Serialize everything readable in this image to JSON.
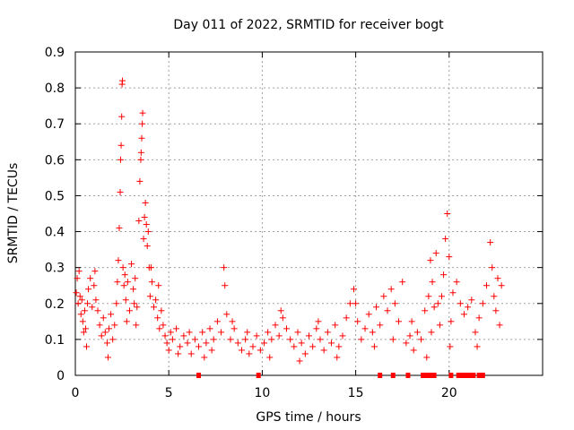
{
  "chart_data": {
    "type": "scatter",
    "title": "Day 011 of 2022, SRMTID for receiver bogt",
    "xlabel": "GPS time / hours",
    "ylabel": "SRMTID / TECUs",
    "xlim": [
      0,
      25
    ],
    "ylim": [
      0,
      0.9
    ],
    "xticks": [
      {
        "value": 0,
        "label": "0"
      },
      {
        "value": 5,
        "label": "5"
      },
      {
        "value": 10,
        "label": "10"
      },
      {
        "value": 15,
        "label": "15"
      },
      {
        "value": 20,
        "label": "20"
      }
    ],
    "yticks": [
      {
        "value": 0,
        "label": "0"
      },
      {
        "value": 0.1,
        "label": "0.1"
      },
      {
        "value": 0.2,
        "label": "0.2"
      },
      {
        "value": 0.3,
        "label": "0.3"
      },
      {
        "value": 0.4,
        "label": "0.4"
      },
      {
        "value": 0.5,
        "label": "0.5"
      },
      {
        "value": 0.6,
        "label": "0.6"
      },
      {
        "value": 0.7,
        "label": "0.7"
      },
      {
        "value": 0.8,
        "label": "0.8"
      },
      {
        "value": 0.9,
        "label": "0.9"
      }
    ],
    "grid": true,
    "marker": "+",
    "color": "#ff0000",
    "series": [
      {
        "name": "SRMTID",
        "points": [
          [
            0.05,
            0.23
          ],
          [
            0.1,
            0.27
          ],
          [
            0.15,
            0.2
          ],
          [
            0.2,
            0.29
          ],
          [
            0.25,
            0.22
          ],
          [
            0.3,
            0.17
          ],
          [
            0.35,
            0.21
          ],
          [
            0.4,
            0.15
          ],
          [
            0.45,
            0.12
          ],
          [
            0.5,
            0.18
          ],
          [
            0.55,
            0.13
          ],
          [
            0.6,
            0.08
          ],
          [
            0.65,
            0.2
          ],
          [
            0.7,
            0.24
          ],
          [
            0.8,
            0.27
          ],
          [
            0.9,
            0.19
          ],
          [
            1.0,
            0.25
          ],
          [
            1.05,
            0.29
          ],
          [
            1.1,
            0.21
          ],
          [
            1.2,
            0.18
          ],
          [
            1.3,
            0.14
          ],
          [
            1.4,
            0.11
          ],
          [
            1.5,
            0.16
          ],
          [
            1.6,
            0.12
          ],
          [
            1.7,
            0.09
          ],
          [
            1.75,
            0.05
          ],
          [
            1.8,
            0.13
          ],
          [
            1.9,
            0.17
          ],
          [
            2.0,
            0.1
          ],
          [
            2.1,
            0.14
          ],
          [
            2.2,
            0.2
          ],
          [
            2.25,
            0.26
          ],
          [
            2.3,
            0.32
          ],
          [
            2.35,
            0.41
          ],
          [
            2.4,
            0.51
          ],
          [
            2.42,
            0.6
          ],
          [
            2.45,
            0.64
          ],
          [
            2.48,
            0.72
          ],
          [
            2.5,
            0.81
          ],
          [
            2.52,
            0.82
          ],
          [
            2.55,
            0.3
          ],
          [
            2.6,
            0.25
          ],
          [
            2.7,
            0.21
          ],
          [
            2.8,
            0.26
          ],
          [
            2.9,
            0.18
          ],
          [
            3.0,
            0.31
          ],
          [
            3.1,
            0.24
          ],
          [
            3.2,
            0.27
          ],
          [
            3.3,
            0.19
          ],
          [
            3.4,
            0.43
          ],
          [
            3.45,
            0.54
          ],
          [
            3.5,
            0.6
          ],
          [
            3.52,
            0.62
          ],
          [
            3.55,
            0.66
          ],
          [
            3.58,
            0.7
          ],
          [
            3.6,
            0.73
          ],
          [
            3.65,
            0.38
          ],
          [
            3.7,
            0.44
          ],
          [
            3.75,
            0.48
          ],
          [
            3.8,
            0.42
          ],
          [
            3.85,
            0.36
          ],
          [
            3.9,
            0.4
          ],
          [
            3.95,
            0.3
          ],
          [
            4.0,
            0.22
          ],
          [
            4.1,
            0.26
          ],
          [
            4.2,
            0.19
          ],
          [
            4.3,
            0.21
          ],
          [
            4.4,
            0.16
          ],
          [
            4.5,
            0.13
          ],
          [
            4.6,
            0.18
          ],
          [
            4.7,
            0.14
          ],
          [
            4.8,
            0.11
          ],
          [
            4.9,
            0.09
          ],
          [
            5.0,
            0.07
          ],
          [
            5.2,
            0.1
          ],
          [
            5.4,
            0.13
          ],
          [
            5.6,
            0.08
          ],
          [
            5.8,
            0.11
          ],
          [
            6.0,
            0.09
          ],
          [
            6.2,
            0.06
          ],
          [
            6.4,
            0.1
          ],
          [
            6.6,
            0.08
          ],
          [
            6.8,
            0.12
          ],
          [
            7.0,
            0.09
          ],
          [
            7.2,
            0.13
          ],
          [
            7.4,
            0.1
          ],
          [
            7.6,
            0.15
          ],
          [
            7.8,
            0.12
          ],
          [
            7.95,
            0.3
          ],
          [
            8.0,
            0.25
          ],
          [
            8.1,
            0.17
          ],
          [
            8.3,
            0.1
          ],
          [
            8.5,
            0.13
          ],
          [
            8.7,
            0.09
          ],
          [
            8.9,
            0.07
          ],
          [
            9.1,
            0.1
          ],
          [
            9.3,
            0.06
          ],
          [
            9.5,
            0.08
          ],
          [
            9.7,
            0.11
          ],
          [
            9.9,
            0.07
          ],
          [
            10.1,
            0.09
          ],
          [
            10.3,
            0.12
          ],
          [
            10.5,
            0.1
          ],
          [
            10.7,
            0.14
          ],
          [
            10.9,
            0.11
          ],
          [
            11.1,
            0.16
          ],
          [
            11.3,
            0.13
          ],
          [
            11.5,
            0.1
          ],
          [
            11.7,
            0.08
          ],
          [
            11.9,
            0.12
          ],
          [
            12.1,
            0.09
          ],
          [
            12.3,
            0.06
          ],
          [
            12.5,
            0.11
          ],
          [
            12.7,
            0.08
          ],
          [
            12.9,
            0.13
          ],
          [
            13.1,
            0.1
          ],
          [
            13.3,
            0.07
          ],
          [
            13.5,
            0.12
          ],
          [
            13.7,
            0.09
          ],
          [
            13.9,
            0.14
          ],
          [
            14.1,
            0.08
          ],
          [
            14.3,
            0.11
          ],
          [
            14.5,
            0.16
          ],
          [
            14.7,
            0.2
          ],
          [
            14.9,
            0.24
          ],
          [
            15.1,
            0.15
          ],
          [
            15.3,
            0.1
          ],
          [
            15.5,
            0.13
          ],
          [
            15.7,
            0.17
          ],
          [
            15.9,
            0.12
          ],
          [
            16.1,
            0.19
          ],
          [
            16.3,
            0.14
          ],
          [
            16.5,
            0.22
          ],
          [
            16.7,
            0.18
          ],
          [
            16.9,
            0.24
          ],
          [
            17.1,
            0.2
          ],
          [
            17.3,
            0.15
          ],
          [
            17.5,
            0.26
          ],
          [
            17.7,
            0.09
          ],
          [
            17.9,
            0.11
          ],
          [
            18.1,
            0.07
          ],
          [
            18.3,
            0.12
          ],
          [
            18.5,
            0.1
          ],
          [
            18.7,
            0.18
          ],
          [
            18.9,
            0.22
          ],
          [
            19.0,
            0.32
          ],
          [
            19.1,
            0.26
          ],
          [
            19.2,
            0.19
          ],
          [
            19.3,
            0.34
          ],
          [
            19.4,
            0.2
          ],
          [
            19.5,
            0.14
          ],
          [
            19.6,
            0.22
          ],
          [
            19.7,
            0.28
          ],
          [
            19.8,
            0.38
          ],
          [
            19.9,
            0.45
          ],
          [
            20.0,
            0.33
          ],
          [
            20.1,
            0.15
          ],
          [
            20.2,
            0.23
          ],
          [
            20.4,
            0.26
          ],
          [
            20.6,
            0.2
          ],
          [
            20.8,
            0.17
          ],
          [
            21.0,
            0.19
          ],
          [
            21.2,
            0.21
          ],
          [
            21.4,
            0.12
          ],
          [
            21.6,
            0.16
          ],
          [
            21.8,
            0.2
          ],
          [
            22.0,
            0.25
          ],
          [
            22.2,
            0.37
          ],
          [
            22.3,
            0.3
          ],
          [
            22.4,
            0.22
          ],
          [
            22.5,
            0.18
          ],
          [
            22.6,
            0.27
          ],
          [
            22.7,
            0.14
          ],
          [
            22.8,
            0.25
          ],
          [
            2.65,
            0.28
          ],
          [
            2.75,
            0.15
          ],
          [
            3.15,
            0.2
          ],
          [
            3.25,
            0.14
          ],
          [
            4.05,
            0.3
          ],
          [
            4.45,
            0.25
          ],
          [
            5.1,
            0.12
          ],
          [
            5.5,
            0.06
          ],
          [
            6.1,
            0.12
          ],
          [
            6.9,
            0.05
          ],
          [
            7.3,
            0.07
          ],
          [
            8.4,
            0.15
          ],
          [
            9.2,
            0.12
          ],
          [
            10.4,
            0.05
          ],
          [
            11.0,
            0.18
          ],
          [
            12.0,
            0.04
          ],
          [
            13.0,
            0.15
          ],
          [
            14.0,
            0.05
          ],
          [
            15.0,
            0.2
          ],
          [
            16.0,
            0.08
          ],
          [
            17.0,
            0.1
          ],
          [
            18.0,
            0.15
          ],
          [
            18.8,
            0.05
          ],
          [
            19.05,
            0.12
          ],
          [
            20.05,
            0.08
          ],
          [
            21.5,
            0.08
          ],
          [
            6.6,
            0.0
          ],
          [
            9.8,
            0.0
          ],
          [
            16.3,
            0.0
          ],
          [
            17.0,
            0.0
          ],
          [
            17.8,
            0.0
          ],
          [
            18.6,
            0.0
          ],
          [
            18.8,
            0.0
          ],
          [
            19.0,
            0.0
          ],
          [
            19.2,
            0.0
          ],
          [
            20.1,
            0.0
          ],
          [
            20.5,
            0.0
          ],
          [
            20.7,
            0.0
          ],
          [
            20.9,
            0.0
          ],
          [
            21.1,
            0.0
          ],
          [
            21.3,
            0.0
          ],
          [
            21.6,
            0.0
          ],
          [
            21.8,
            0.0
          ]
        ]
      }
    ]
  }
}
